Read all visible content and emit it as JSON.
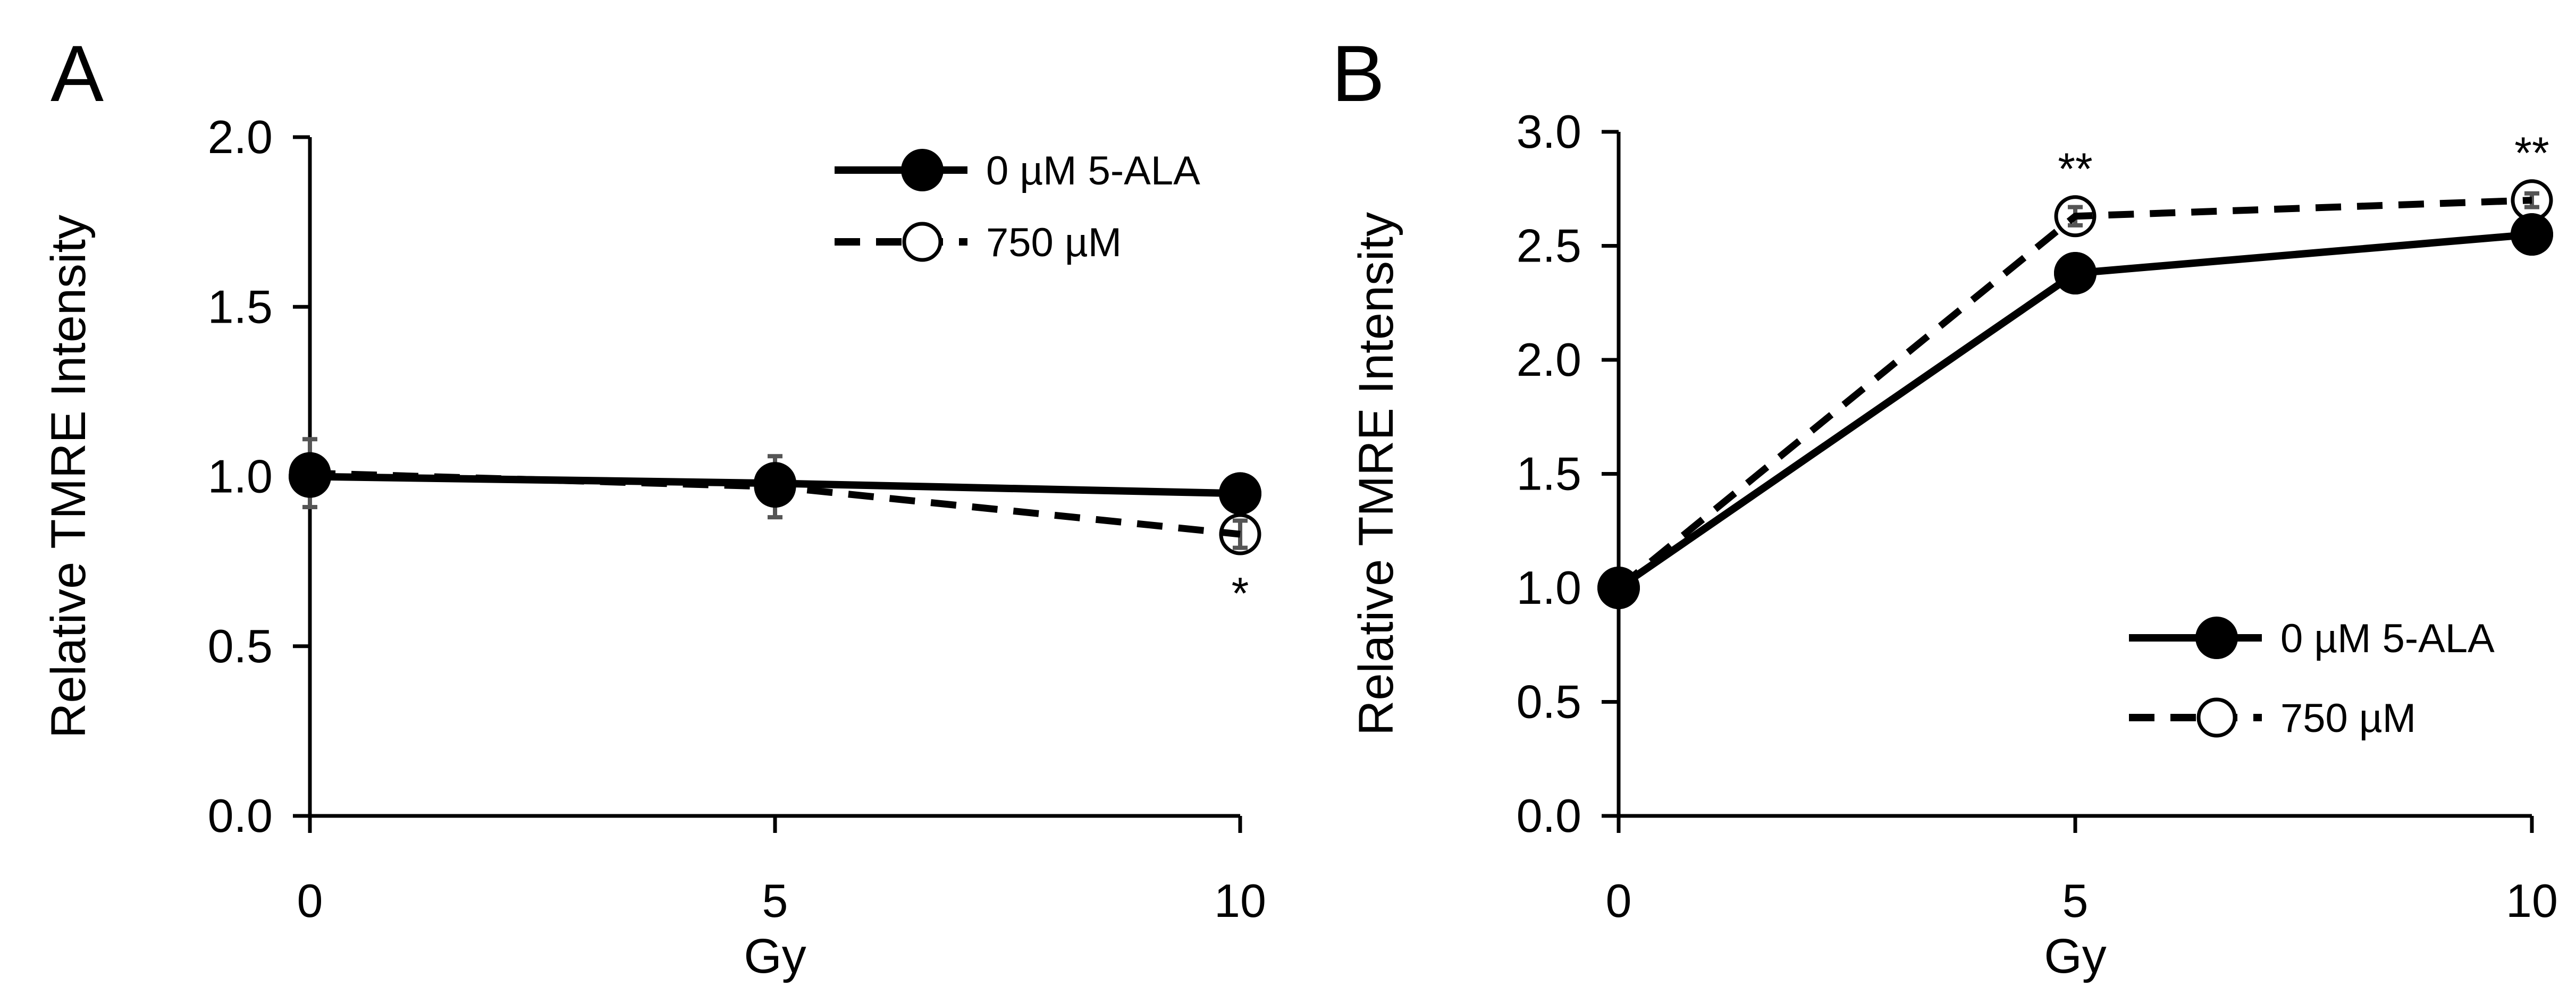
{
  "chart_data": [
    {
      "type": "line",
      "panel_label": "A",
      "xlabel": "Gy",
      "ylabel": "Relative TMRE Intensity",
      "x": [
        0,
        5,
        10
      ],
      "xticks": [
        "0",
        "5",
        "10"
      ],
      "xlim": [
        0,
        10
      ],
      "ylim": [
        0,
        2
      ],
      "yticks": [
        "0.0",
        "0.5",
        "1.0",
        "1.5",
        "2.0"
      ],
      "grid": false,
      "legend_position": "top-right",
      "series": [
        {
          "name": "0 µM 5-ALA",
          "style": "solid",
          "marker": "filled-circle",
          "values": [
            1.0,
            0.98,
            0.95
          ],
          "errors": [
            0.03,
            0.04,
            0.02
          ]
        },
        {
          "name": "750 µM",
          "style": "dashed",
          "marker": "open-circle",
          "values": [
            1.01,
            0.97,
            0.83
          ],
          "errors": [
            0.1,
            0.09,
            0.04
          ]
        }
      ],
      "annotations": [
        {
          "x": 10,
          "text": "*",
          "position": "below"
        }
      ]
    },
    {
      "type": "line",
      "panel_label": "B",
      "xlabel": "Gy",
      "ylabel": "Relative TMRE Intensity",
      "x": [
        0,
        5,
        10
      ],
      "xticks": [
        "0",
        "5",
        "10"
      ],
      "xlim": [
        0,
        10
      ],
      "ylim": [
        0,
        3
      ],
      "yticks": [
        "0.0",
        "0.5",
        "1.0",
        "1.5",
        "2.0",
        "2.5",
        "3.0"
      ],
      "grid": false,
      "legend_position": "bottom-right",
      "series": [
        {
          "name": "0 µM 5-ALA",
          "style": "solid",
          "marker": "filled-circle",
          "values": [
            1.0,
            2.38,
            2.55
          ],
          "errors": [
            0.02,
            0.04,
            0.03
          ]
        },
        {
          "name": "750 µM",
          "style": "dashed",
          "marker": "open-circle",
          "values": [
            1.0,
            2.63,
            2.7
          ],
          "errors": [
            0.02,
            0.04,
            0.03
          ]
        }
      ],
      "annotations": [
        {
          "x": 5,
          "text": "**",
          "position": "above"
        },
        {
          "x": 10,
          "text": "**",
          "position": "above"
        }
      ]
    }
  ]
}
